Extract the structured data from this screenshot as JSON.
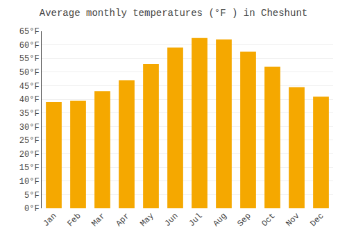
{
  "chart_data": {
    "type": "bar",
    "title": "Average monthly temperatures (°F ) in Cheshunt",
    "categories": [
      "Jan",
      "Feb",
      "Mar",
      "Apr",
      "May",
      "Jun",
      "Jul",
      "Aug",
      "Sep",
      "Oct",
      "Nov",
      "Dec"
    ],
    "values": [
      39.0,
      39.5,
      43.0,
      47.0,
      53.0,
      59.0,
      62.5,
      62.0,
      57.5,
      52.0,
      44.5,
      41.0
    ],
    "color": "#F5A800",
    "ylim": [
      0,
      65
    ],
    "yticks": [
      {
        "value": 0,
        "label": "0°F"
      },
      {
        "value": 5,
        "label": "5°F"
      },
      {
        "value": 10,
        "label": "10°F"
      },
      {
        "value": 15,
        "label": "15°F"
      },
      {
        "value": 20,
        "label": "20°F"
      },
      {
        "value": 25,
        "label": "25°F"
      },
      {
        "value": 30,
        "label": "30°F"
      },
      {
        "value": 35,
        "label": "35°F"
      },
      {
        "value": 40,
        "label": "40°F"
      },
      {
        "value": 45,
        "label": "45°F"
      },
      {
        "value": 50,
        "label": "50°F"
      },
      {
        "value": 55,
        "label": "55°F"
      },
      {
        "value": 60,
        "label": "60°F"
      },
      {
        "value": 65,
        "label": "65°F"
      }
    ],
    "grid": true
  }
}
